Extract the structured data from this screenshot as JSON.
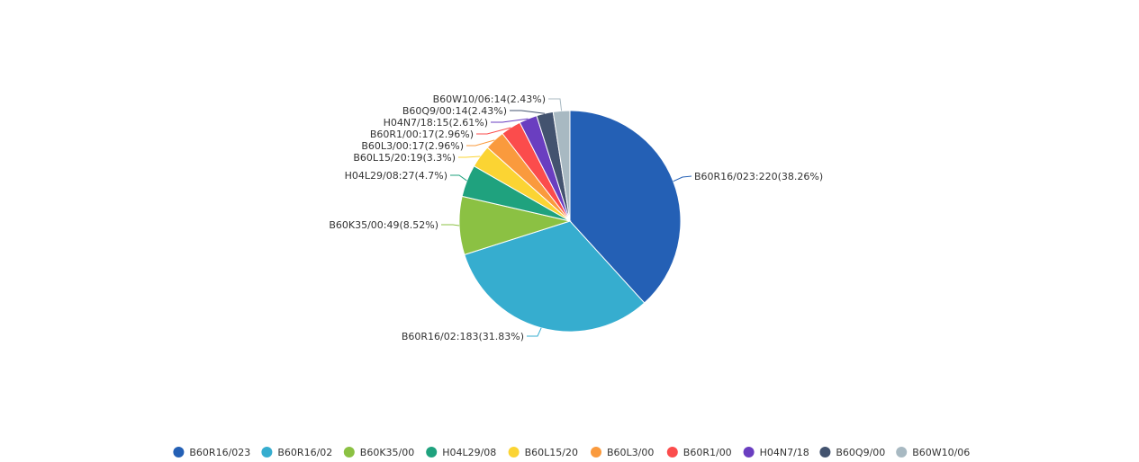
{
  "chart_data": {
    "type": "pie",
    "title": "",
    "legend": {
      "placement": "bottom-center"
    },
    "slices": [
      {
        "name": "B60R16/023",
        "value": 220,
        "percent": "38.26%",
        "label": "B60R16/023:220(38.26%)",
        "color": "#2460b5"
      },
      {
        "name": "B60R16/02",
        "value": 183,
        "percent": "31.83%",
        "label": "B60R16/02:183(31.83%)",
        "color": "#36adcf"
      },
      {
        "name": "B60K35/00",
        "value": 49,
        "percent": "8.52%",
        "label": "B60K35/00:49(8.52%)",
        "color": "#8bc143"
      },
      {
        "name": "H04L29/08",
        "value": 27,
        "percent": "4.7%",
        "label": "H04L29/08:27(4.7%)",
        "color": "#1fa27e"
      },
      {
        "name": "B60L15/20",
        "value": 19,
        "percent": "3.3%",
        "label": "B60L15/20:19(3.3%)",
        "color": "#fbd433"
      },
      {
        "name": "B60L3/00",
        "value": 17,
        "percent": "2.96%",
        "label": "B60L3/00:17(2.96%)",
        "color": "#fa9a3d"
      },
      {
        "name": "B60R1/00",
        "value": 17,
        "percent": "2.96%",
        "label": "B60R1/00:17(2.96%)",
        "color": "#fb4c4c"
      },
      {
        "name": "H04N7/18",
        "value": 15,
        "percent": "2.61%",
        "label": "H04N7/18:15(2.61%)",
        "color": "#6a3ec0"
      },
      {
        "name": "B60Q9/00",
        "value": 14,
        "percent": "2.43%",
        "label": "B60Q9/00:14(2.43%)",
        "color": "#43536f"
      },
      {
        "name": "B60W10/06",
        "value": 14,
        "percent": "2.43%",
        "label": "B60W10/06:14(2.43%)",
        "color": "#a8b9c2"
      }
    ]
  }
}
